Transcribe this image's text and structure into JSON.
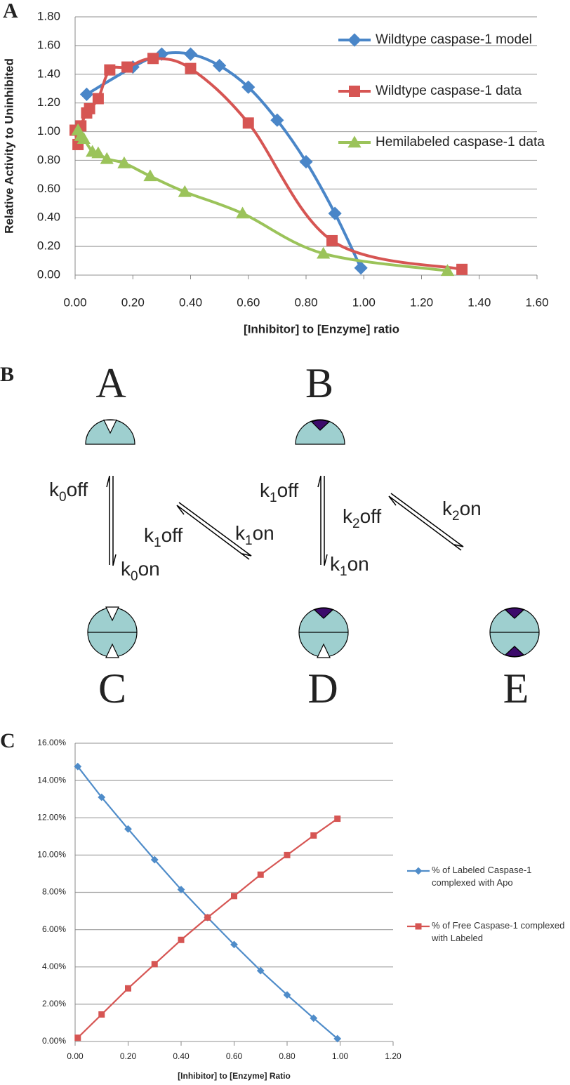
{
  "panel_labels": [
    "A",
    "B",
    "C"
  ],
  "chart_data": [
    {
      "type": "line",
      "smooth": true,
      "grid": true,
      "x_label": "[Inhibitor] to [Enzyme] ratio",
      "y_label": "Relative Activity to Uninhibited",
      "xlim": [
        0,
        1.6
      ],
      "xticks": [
        {
          "value": 0,
          "label": "0.00"
        },
        {
          "value": 0.2,
          "label": "0.20"
        },
        {
          "value": 0.4,
          "label": "0.40"
        },
        {
          "value": 0.6,
          "label": "0.60"
        },
        {
          "value": 0.8,
          "label": "0.80"
        },
        {
          "value": 1,
          "label": "1.00"
        },
        {
          "value": 1.2,
          "label": "1.20"
        },
        {
          "value": 1.4,
          "label": "1.40"
        },
        {
          "value": 1.6,
          "label": "1.60"
        }
      ],
      "ylim": [
        0,
        1.8
      ],
      "yticks": [
        {
          "value": 0,
          "label": "0.00"
        },
        {
          "value": 0.2,
          "label": "0.20"
        },
        {
          "value": 0.4,
          "label": "0.40"
        },
        {
          "value": 0.6,
          "label": "0.60"
        },
        {
          "value": 0.8,
          "label": "0.80"
        },
        {
          "value": 1,
          "label": "1.00"
        },
        {
          "value": 1.2,
          "label": "1.20"
        },
        {
          "value": 1.4,
          "label": "1.40"
        },
        {
          "value": 1.6,
          "label": "1.60"
        },
        {
          "value": 1.8,
          "label": "1.80"
        }
      ],
      "series": [
        {
          "name": "Wildtype caspase-1 model",
          "color": "#4a86c8",
          "marker": "diamond",
          "x": [
            0.04,
            0.2,
            0.3,
            0.4,
            0.5,
            0.6,
            0.7,
            0.8,
            0.9,
            0.99
          ],
          "values": [
            1.26,
            1.45,
            1.54,
            1.54,
            1.46,
            1.31,
            1.08,
            0.79,
            0.43,
            0.05
          ]
        },
        {
          "name": "Wildtype caspase-1 data",
          "color": "#d65553",
          "marker": "square",
          "x": [
            0,
            0.01,
            0.02,
            0.04,
            0.05,
            0.08,
            0.12,
            0.18,
            0.27,
            0.4,
            0.6,
            0.89,
            1.34
          ],
          "values": [
            1.01,
            0.91,
            1.04,
            1.13,
            1.16,
            1.23,
            1.43,
            1.45,
            1.51,
            1.44,
            1.06,
            0.24,
            0.04
          ]
        },
        {
          "name": "Hemilabeled caspase-1 data",
          "color": "#9bc35a",
          "marker": "triangle",
          "x": [
            0.01,
            0.02,
            0.03,
            0.06,
            0.08,
            0.11,
            0.17,
            0.26,
            0.38,
            0.58,
            0.86,
            1.29
          ],
          "values": [
            1.01,
            0.97,
            0.95,
            0.86,
            0.85,
            0.81,
            0.78,
            0.69,
            0.58,
            0.43,
            0.15,
            0.03
          ]
        }
      ]
    },
    {
      "type": "line",
      "smooth": false,
      "grid": true,
      "x_label": "[Inhibitor] to [Enzyme] Ratio",
      "xlim": [
        0,
        1.2
      ],
      "xticks": [
        {
          "value": 0,
          "label": "0.00"
        },
        {
          "value": 0.2,
          "label": "0.20"
        },
        {
          "value": 0.4,
          "label": "0.40"
        },
        {
          "value": 0.6,
          "label": "0.60"
        },
        {
          "value": 0.8,
          "label": "0.80"
        },
        {
          "value": 1,
          "label": "1.00"
        },
        {
          "value": 1.2,
          "label": "1.20"
        }
      ],
      "ylim": [
        0,
        16
      ],
      "yticks": [
        {
          "value": 0,
          "label": "0.00%"
        },
        {
          "value": 2,
          "label": "2.00%"
        },
        {
          "value": 4,
          "label": "4.00%"
        },
        {
          "value": 6,
          "label": "6.00%"
        },
        {
          "value": 8,
          "label": "8.00%"
        },
        {
          "value": 10,
          "label": "10.00%"
        },
        {
          "value": 12,
          "label": "12.00%"
        },
        {
          "value": 14,
          "label": "14.00%"
        },
        {
          "value": 16,
          "label": "16.00%"
        }
      ],
      "series": [
        {
          "name": "% of Labeled Caspase-1 complexed with Apo",
          "color": "#4f8cc9",
          "marker": "diamond",
          "x": [
            0.01,
            0.1,
            0.2,
            0.3,
            0.4,
            0.5,
            0.6,
            0.7,
            0.8,
            0.9,
            0.99
          ],
          "values": [
            14.75,
            13.1,
            11.4,
            9.75,
            8.15,
            6.65,
            5.2,
            3.8,
            2.5,
            1.25,
            0.15
          ]
        },
        {
          "name": "% of Free Caspase-1 complexed with Labeled",
          "color": "#d65553",
          "marker": "square",
          "x": [
            0.01,
            0.1,
            0.2,
            0.3,
            0.4,
            0.5,
            0.6,
            0.7,
            0.8,
            0.9,
            0.99
          ],
          "values": [
            0.2,
            1.45,
            2.85,
            4.15,
            5.45,
            6.65,
            7.8,
            8.95,
            10.0,
            11.05,
            11.95
          ]
        }
      ]
    }
  ],
  "diagram": {
    "states": [
      "A",
      "B",
      "C",
      "D",
      "E"
    ],
    "rates": [
      {
        "base": "k",
        "sub": "0",
        "suffix": "off"
      },
      {
        "base": "k",
        "sub": "0",
        "suffix": "on"
      },
      {
        "base": "k",
        "sub": "1",
        "suffix": "off"
      },
      {
        "base": "k",
        "sub": "1",
        "suffix": "on"
      },
      {
        "base": "k",
        "sub": "1",
        "suffix": "off"
      },
      {
        "base": "k",
        "sub": "1",
        "suffix": "on"
      },
      {
        "base": "k",
        "sub": "2",
        "suffix": "off"
      },
      {
        "base": "k",
        "sub": "2",
        "suffix": "on"
      }
    ]
  }
}
